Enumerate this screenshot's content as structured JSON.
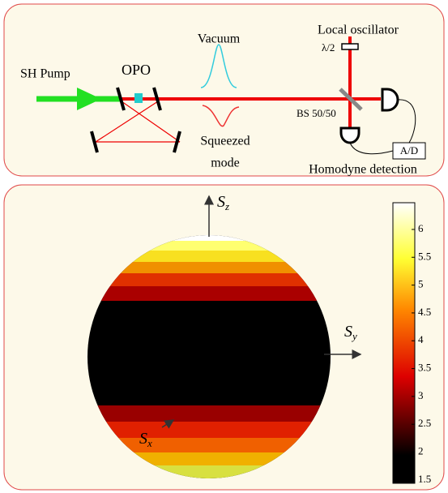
{
  "setup": {
    "pump": "SH Pump",
    "opo": "OPO",
    "vacuum": "Vacuum",
    "squeezed": [
      "Squeezed",
      "mode"
    ],
    "local_oscillator": "Local oscillator",
    "half_wave": "λ/2",
    "beam_splitter": "BS 50/50",
    "converter": "A/D",
    "detection": "Homodyne detection"
  },
  "sphere": {
    "axes": {
      "z": {
        "main": "S",
        "sub": "z"
      },
      "y": {
        "main": "S",
        "sub": "y"
      },
      "x": {
        "main": "S",
        "sub": "x"
      }
    },
    "colorbar": {
      "range": [
        1.44,
        6.48
      ],
      "ticks": [
        1.5,
        2,
        2.5,
        3,
        3.5,
        4,
        4.5,
        5,
        5.5,
        6
      ]
    }
  }
}
